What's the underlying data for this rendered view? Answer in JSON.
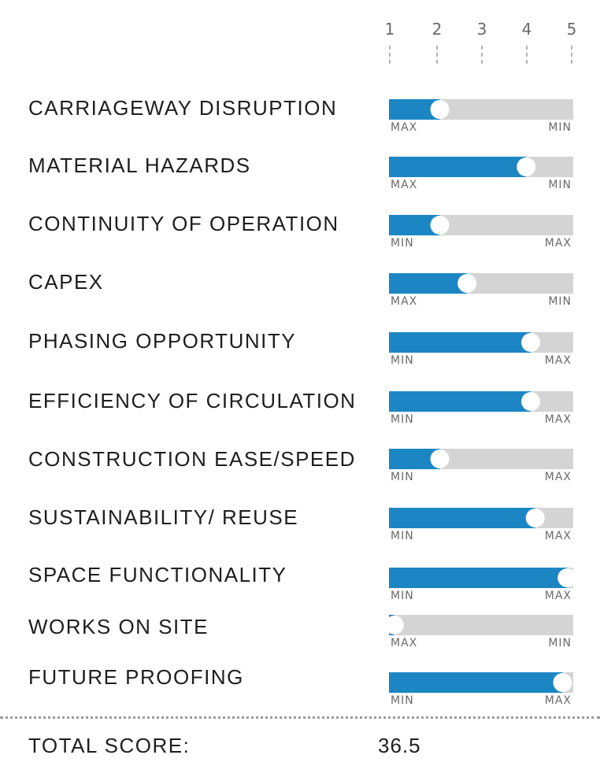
{
  "chart_data": {
    "type": "bar",
    "scale": {
      "min": 1,
      "max": 5,
      "ticks": [
        "1",
        "2",
        "3",
        "4",
        "5"
      ]
    },
    "colors": {
      "fill": "#1b86c3",
      "track": "#d4d4d4",
      "knob": "#ffffff"
    },
    "rows": [
      {
        "label": "CARRIAGEWAY DISRUPTION",
        "value": 2.1,
        "left_label": "MAX",
        "right_label": "MIN"
      },
      {
        "label": "MATERIAL HAZARDS",
        "value": 4.0,
        "left_label": "MAX",
        "right_label": "MIN"
      },
      {
        "label": "CONTINUITY OF OPERATION",
        "value": 2.1,
        "left_label": "MIN",
        "right_label": "MAX"
      },
      {
        "label": "CAPEX",
        "value": 2.7,
        "left_label": "MAX",
        "right_label": "MIN"
      },
      {
        "label": "PHASING OPPORTUNITY",
        "value": 4.1,
        "left_label": "MIN",
        "right_label": "MAX"
      },
      {
        "label": "EFFICIENCY OF CIRCULATION",
        "value": 4.1,
        "left_label": "MIN",
        "right_label": "MAX"
      },
      {
        "label": "CONSTRUCTION EASE/SPEED",
        "value": 2.1,
        "left_label": "MIN",
        "right_label": "MAX"
      },
      {
        "label": "SUSTAINABILITY/ REUSE",
        "value": 4.2,
        "left_label": "MIN",
        "right_label": "MAX"
      },
      {
        "label": "SPACE FUNCTIONALITY",
        "value": 4.9,
        "left_label": "MIN",
        "right_label": "MAX"
      },
      {
        "label": "WORKS ON SITE",
        "value": 1.1,
        "left_label": "MAX",
        "right_label": "MIN"
      },
      {
        "label": "FUTURE PROOFING",
        "value": 4.8,
        "left_label": "MIN",
        "right_label": "MAX"
      }
    ]
  },
  "total": {
    "label": "TOTAL SCORE:",
    "value": "36.5"
  }
}
